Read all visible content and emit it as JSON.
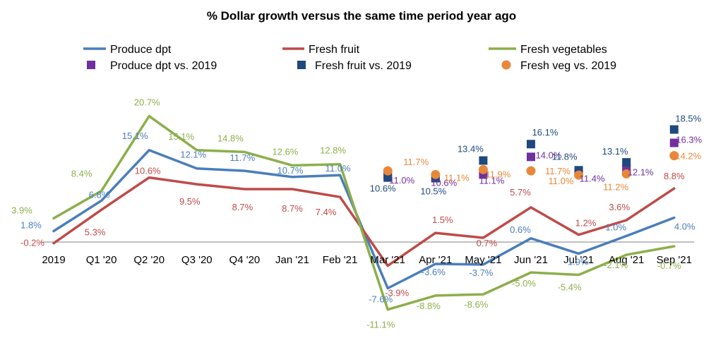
{
  "chart_data": {
    "type": "line",
    "title": "% Dollar growth versus the same time period year ago",
    "xlabel": "",
    "ylabel": "",
    "categories": [
      "2019",
      "Q1 '20",
      "Q2 '20",
      "Q3 '20",
      "Q4 '20",
      "Jan '21",
      "Feb '21",
      "Mar '21",
      "Apr '21",
      "May '21",
      "Jun '21",
      "Jul '21",
      "Aug '21",
      "Sep '21"
    ],
    "ylim": [
      -12,
      22
    ],
    "grid": false,
    "legend_position": "top",
    "series": [
      {
        "name": "Produce dpt",
        "kind": "line",
        "color": "#4a7ebb",
        "values": [
          1.8,
          6.8,
          15.1,
          12.1,
          11.7,
          10.7,
          11.0,
          -7.6,
          -3.6,
          -3.7,
          0.6,
          -1.9,
          1.0,
          4.0
        ],
        "labels": [
          "1.8%",
          "6.8%",
          "15.1%",
          "12.1%",
          "11.7%",
          "10.7%",
          "11.0%",
          "-7.6%",
          "-3.6%",
          "-3.7%",
          "0.6%",
          "-1.9%",
          "1.0%",
          "4.0%"
        ]
      },
      {
        "name": "Fresh fruit",
        "kind": "line",
        "color": "#be4b48",
        "values": [
          -0.2,
          5.3,
          10.6,
          9.5,
          8.7,
          8.7,
          7.4,
          -3.9,
          1.5,
          0.7,
          5.7,
          1.2,
          3.6,
          8.8
        ],
        "labels": [
          "-0.2%",
          "5.3%",
          "10.6%",
          "9.5%",
          "8.7%",
          "8.7%",
          "7.4%",
          "-3.9%",
          "1.5%",
          "0.7%",
          "5.7%",
          "1.2%",
          "3.6%",
          "8.8%"
        ]
      },
      {
        "name": "Fresh vegetables",
        "kind": "line",
        "color": "#8caf4a",
        "values": [
          3.9,
          8.4,
          20.7,
          15.1,
          14.8,
          12.6,
          12.8,
          -11.1,
          -8.8,
          -8.6,
          -5.0,
          -5.4,
          -2.1,
          -0.7
        ],
        "labels": [
          "3.9%",
          "8.4%",
          "20.7%",
          "15.1%",
          "14.8%",
          "12.6%",
          "12.8%",
          "-11.1%",
          "-8.8%",
          "-8.6%",
          "-5.0%",
          "-5.4%",
          "-2.1%",
          "-0.7%"
        ]
      },
      {
        "name": "Produce dpt vs. 2019",
        "kind": "marker",
        "marker": "square",
        "color": "#7030a0",
        "values": [
          null,
          null,
          null,
          null,
          null,
          null,
          null,
          11.0,
          10.6,
          11.1,
          14.0,
          11.4,
          12.1,
          16.3
        ],
        "labels": [
          "",
          "",
          "",
          "",
          "",
          "",
          "",
          "11.0%",
          "10.6%",
          "11.1%",
          "14.0%",
          "11.4%",
          "12.1%",
          "16.3%"
        ]
      },
      {
        "name": "Fresh fruit vs. 2019",
        "kind": "marker",
        "marker": "square",
        "color": "#1f497d",
        "values": [
          null,
          null,
          null,
          null,
          null,
          null,
          null,
          10.6,
          10.5,
          13.4,
          16.1,
          11.8,
          13.1,
          18.5
        ],
        "labels": [
          "",
          "",
          "",
          "",
          "",
          "",
          "",
          "10.6%",
          "10.5%",
          "13.4%",
          "16.1%",
          "11.8%",
          "13.1%",
          "18.5%"
        ]
      },
      {
        "name": "Fresh veg vs. 2019",
        "kind": "marker",
        "marker": "circle",
        "color": "#e8873a",
        "values": [
          null,
          null,
          null,
          null,
          null,
          null,
          null,
          11.7,
          11.1,
          11.9,
          11.7,
          11.0,
          11.2,
          14.2
        ],
        "labels": [
          "",
          "",
          "",
          "",
          "",
          "",
          "",
          "11.7%",
          "11.1%",
          "11.9%",
          "11.7%",
          "11.0%",
          "11.2%",
          "14.2%"
        ]
      }
    ]
  }
}
